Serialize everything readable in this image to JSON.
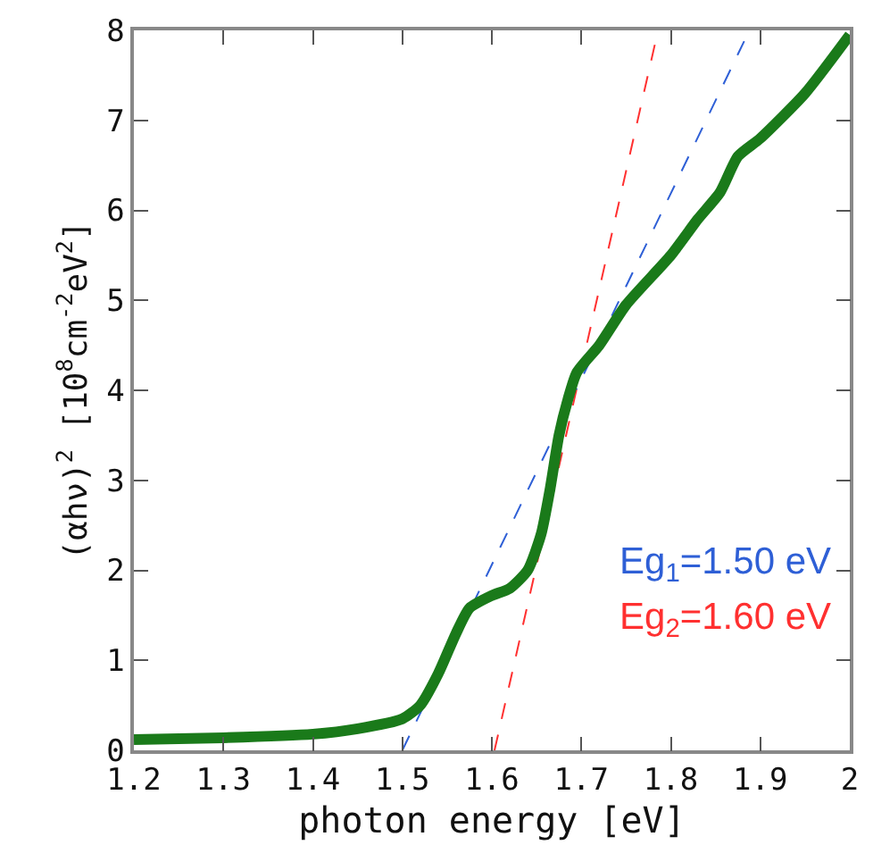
{
  "chart_data": {
    "type": "line",
    "xlabel": "photon energy [eV]",
    "ylabel": "(αhν)$^{2}$ [10$^{8}$cm$^{-2}$eV$^{2}$]",
    "xlim": [
      1.2,
      2
    ],
    "ylim": [
      0,
      8
    ],
    "xticks": [
      1.2,
      1.3,
      1.4,
      1.5,
      1.6,
      1.7,
      1.8,
      1.9,
      2
    ],
    "yticks": [
      0,
      1,
      2,
      3,
      4,
      5,
      6,
      7,
      8
    ],
    "marker": "none",
    "series": [
      {
        "color": "#2e5fd6",
        "line_style": "dashed",
        "x": [
          1.5,
          1.882
        ],
        "values": [
          0,
          7.88
        ]
      },
      {
        "color": "#ff3030",
        "line_style": "dashed",
        "x": [
          1.603,
          1.783
        ],
        "values": [
          0,
          7.88
        ]
      },
      {
        "color": "#1a7a1a",
        "line_style": "solid",
        "x": [
          1.2,
          1.3,
          1.4,
          1.45,
          1.5,
          1.52,
          1.54,
          1.56,
          1.575,
          1.6,
          1.62,
          1.64,
          1.655,
          1.665,
          1.675,
          1.685,
          1.695,
          1.72,
          1.75,
          1.8,
          1.83,
          1.855,
          1.875,
          1.9,
          1.95,
          2.0
        ],
        "values": [
          0.12,
          0.14,
          0.18,
          0.24,
          0.35,
          0.5,
          0.85,
          1.3,
          1.58,
          1.72,
          1.8,
          2.0,
          2.4,
          2.9,
          3.5,
          3.9,
          4.2,
          4.5,
          4.95,
          5.5,
          5.9,
          6.2,
          6.6,
          6.8,
          7.3,
          7.95
        ]
      }
    ],
    "annotations": [
      "Eg$_{1}$=1.50 eV",
      "Eg$_{2}$=1.60 eV"
    ]
  }
}
